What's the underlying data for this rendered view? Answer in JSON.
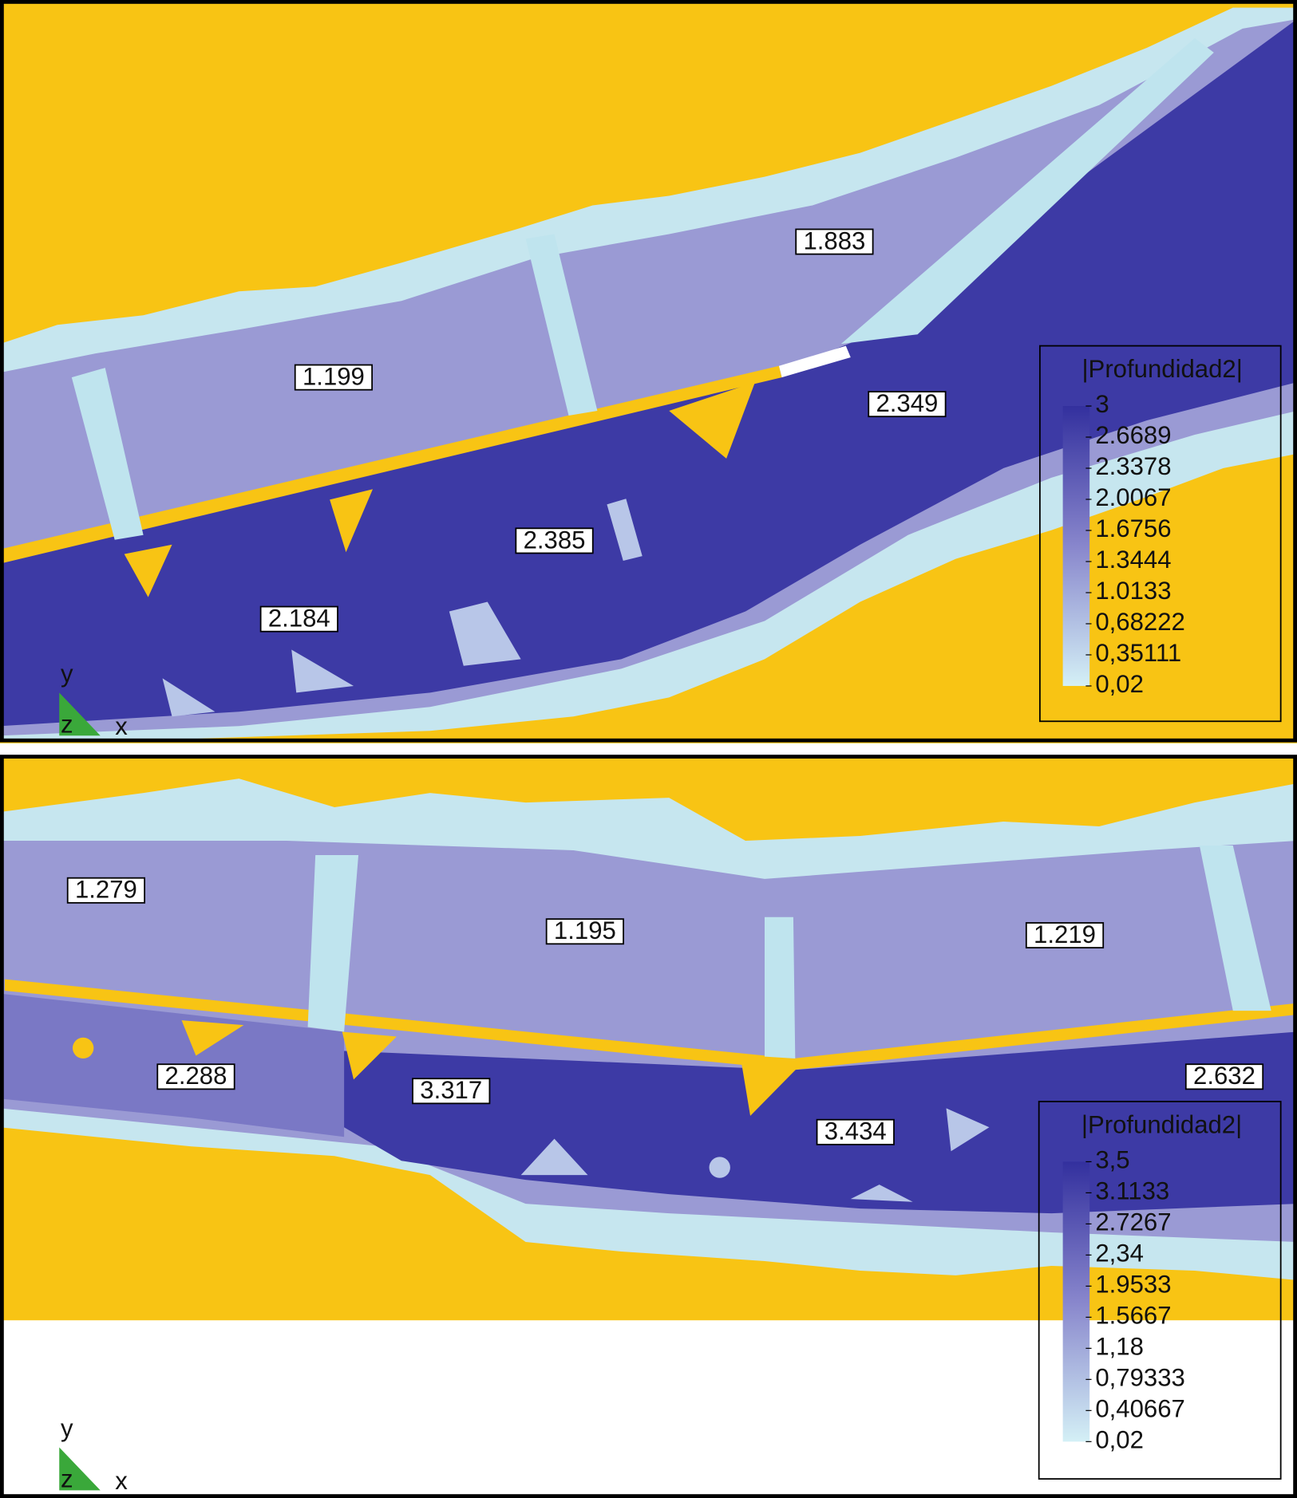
{
  "panels": [
    {
      "labels": [
        "1.883",
        "1.199",
        "2.349",
        "2.385",
        "2.184"
      ],
      "legend": {
        "title": "|Profundidad2|",
        "ticks": [
          "3",
          "2.6689",
          "2.3378",
          "2.0067",
          "1.6756",
          "1.3444",
          "1.0133",
          "0,68222",
          "0,35111",
          "0,02"
        ]
      },
      "axes": {
        "y": "y",
        "z": "z",
        "x": "x"
      }
    },
    {
      "labels": [
        "1.279",
        "1.195",
        "1.219",
        "2.288",
        "3.317",
        "3.434",
        "2.632"
      ],
      "legend": {
        "title": "|Profundidad2|",
        "ticks": [
          "3,5",
          "3.1133",
          "2.7267",
          "2,34",
          "1.9533",
          "1.5667",
          "1,18",
          "0,79333",
          "0,40667",
          "0,02"
        ]
      },
      "axes": {
        "y": "y",
        "z": "z",
        "x": "x"
      }
    }
  ]
}
